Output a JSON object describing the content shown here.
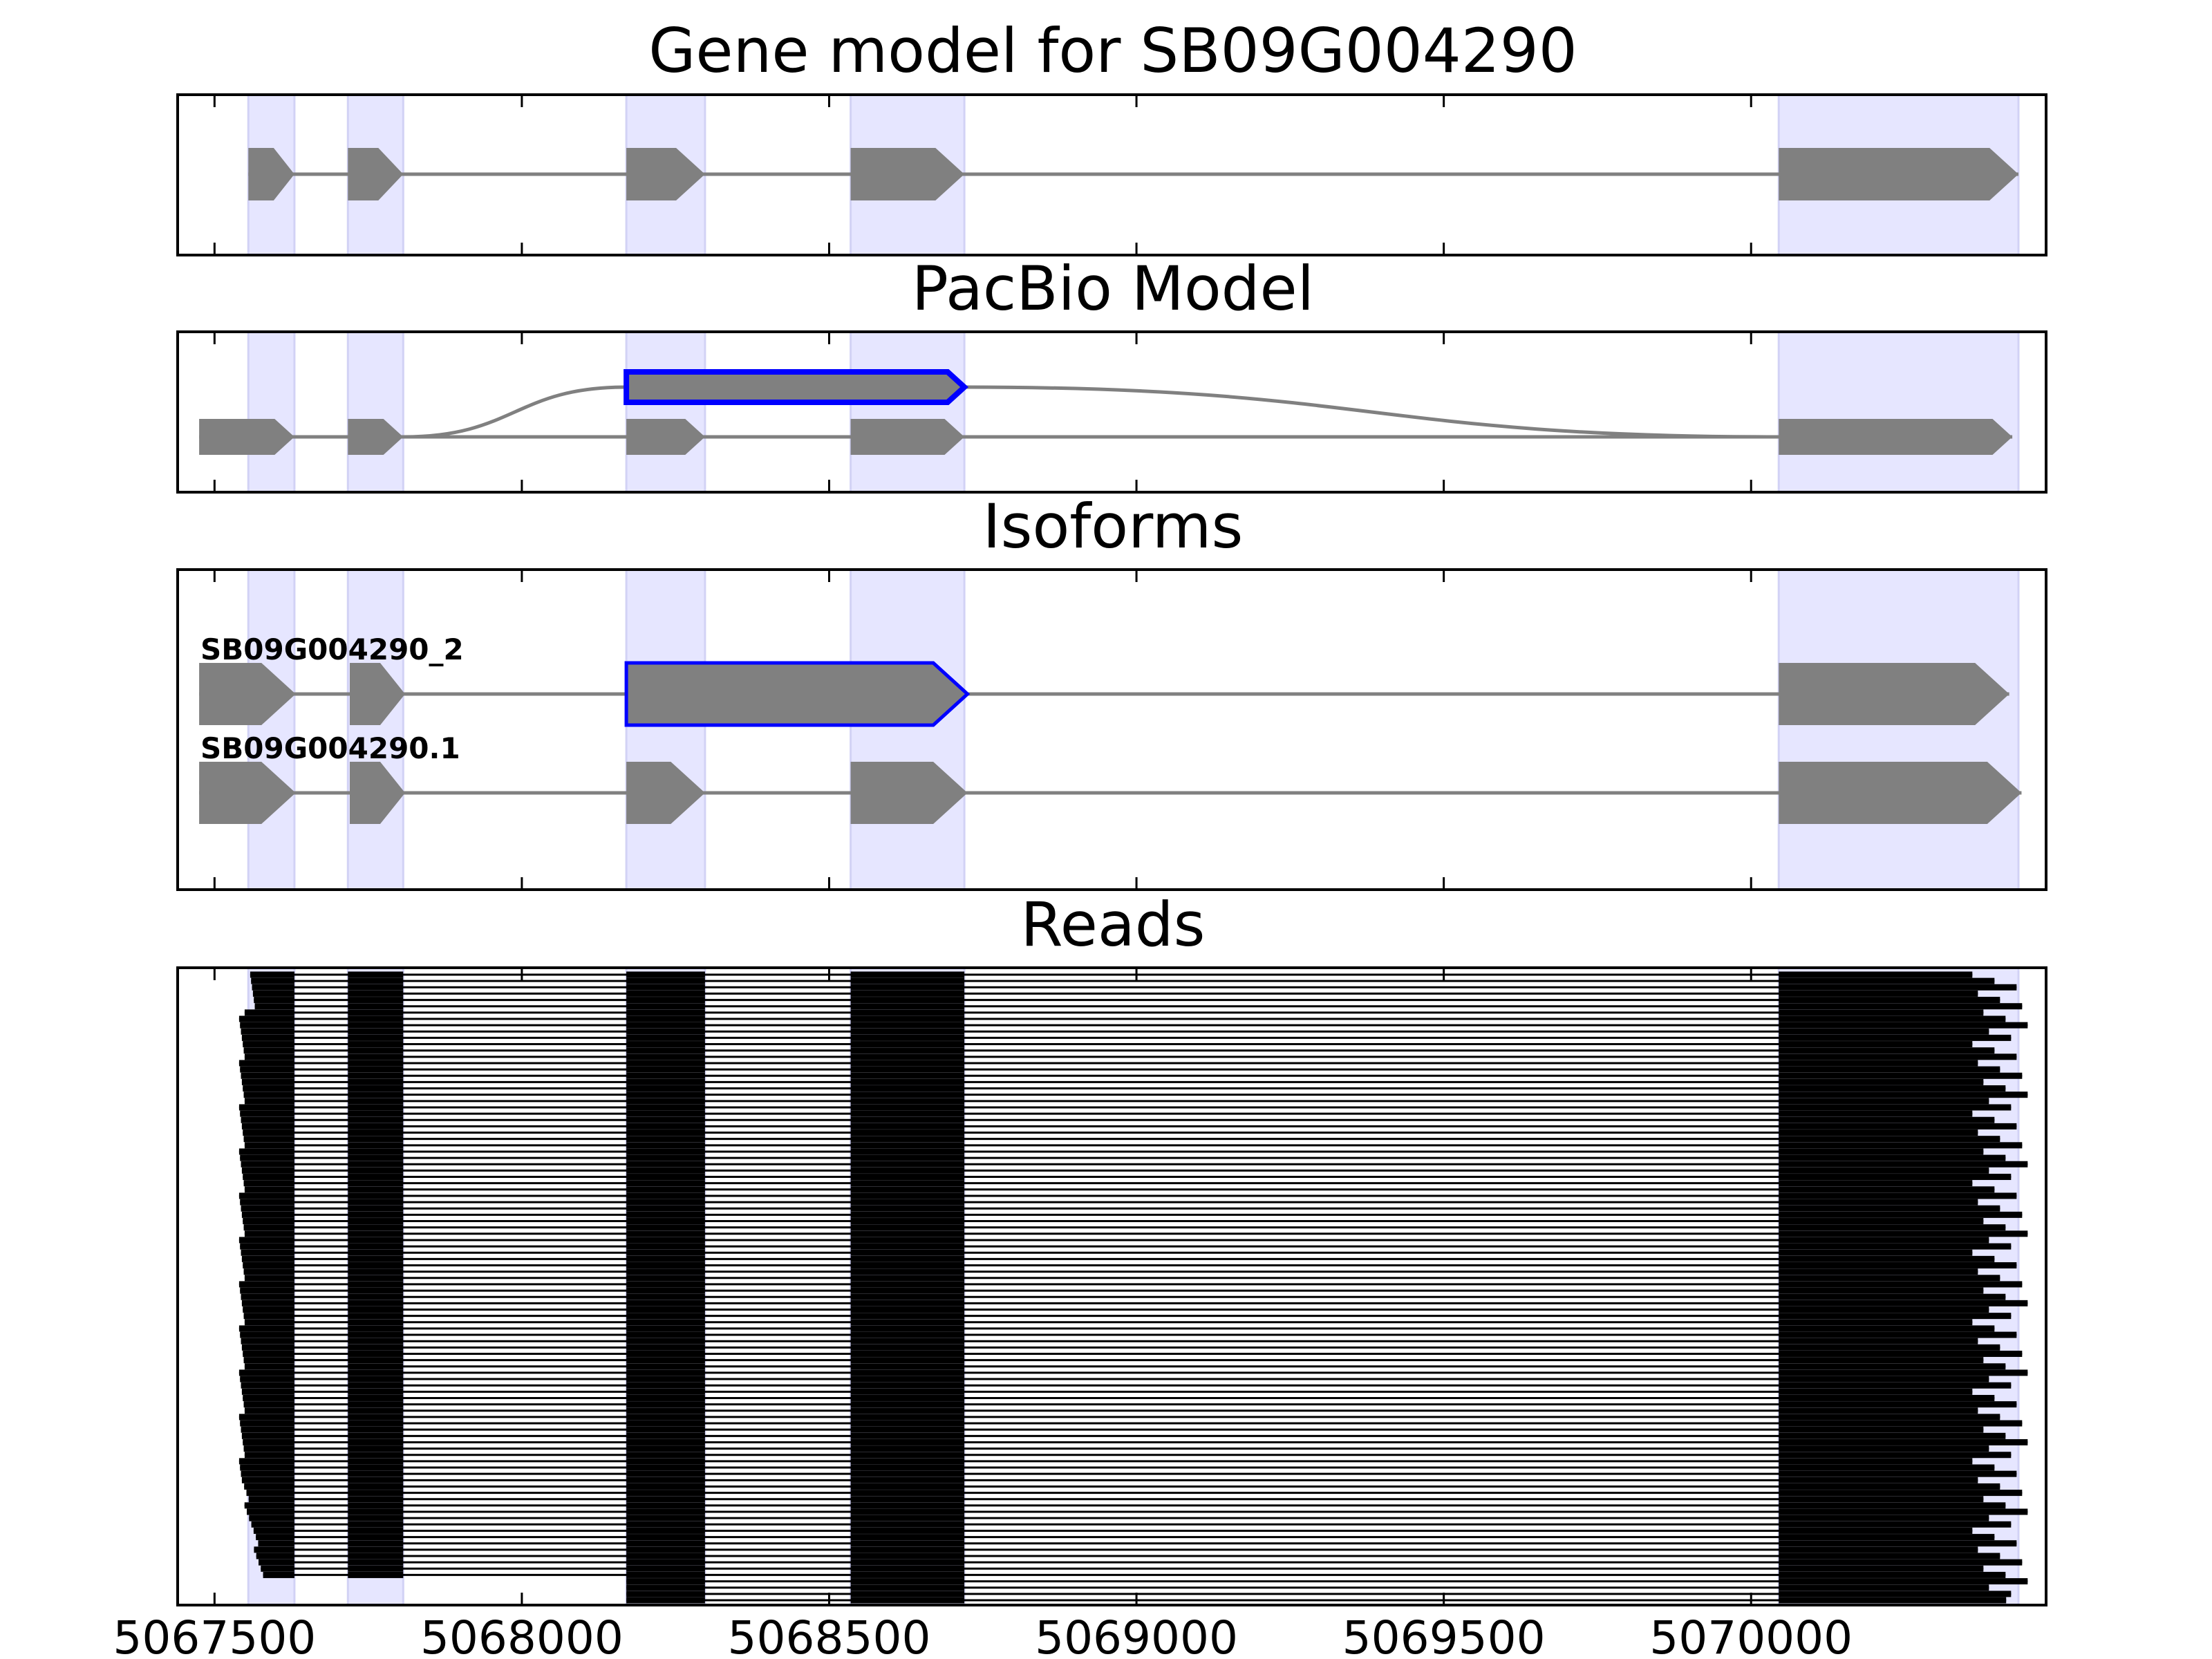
{
  "chart_data": {
    "type": "gene-structure",
    "xlim": [
      5067440,
      5070480
    ],
    "x_ticks": [
      5067500,
      5068000,
      5068500,
      5069000,
      5069500,
      5070000
    ],
    "x_tick_labels": [
      "5067500",
      "5068000",
      "5068500",
      "5069000",
      "5069500",
      "5070000"
    ],
    "colors": {
      "feature": "#808080",
      "highlight_band": "#e6e6ff",
      "selected_outline": "#0000ff",
      "read": "#000000",
      "frame": "#000000"
    },
    "exon_regions": [
      [
        5067555,
        5067630
      ],
      [
        5067717,
        5067807
      ],
      [
        5068170,
        5068298
      ],
      [
        5068535,
        5068720
      ],
      [
        5070045,
        5070435
      ]
    ],
    "gene_model": {
      "title": "Gene model for SB09G004290",
      "exons": [
        [
          5067555,
          5067630
        ],
        [
          5067717,
          5067807
        ],
        [
          5068170,
          5068298
        ],
        [
          5068535,
          5068720
        ],
        [
          5070045,
          5070435
        ]
      ]
    },
    "pacbio_model": {
      "title": "PacBio Model",
      "paths": [
        {
          "exons": [
            [
              5067475,
              5067630
            ],
            [
              5067717,
              5067807
            ],
            [
              5068170,
              5068298
            ],
            [
              5068535,
              5068720
            ],
            [
              5070045,
              5070425
            ]
          ]
        },
        {
          "exons": [
            [
              5068170,
              5068720
            ]
          ],
          "selected": true,
          "branch_from": 5067807,
          "rejoin_at": 5070045
        }
      ]
    },
    "isoforms": {
      "title": "Isoforms",
      "items": [
        {
          "name": "SB09G004290_2",
          "exons": [
            [
              5067475,
              5067632
            ],
            [
              5067720,
              5067810
            ],
            [
              5068170,
              5068725
            ],
            [
              5070045,
              5070420
            ]
          ],
          "selected": true
        },
        {
          "name": "SB09G004290.1",
          "exons": [
            [
              5067475,
              5067632
            ],
            [
              5067720,
              5067810
            ],
            [
              5068170,
              5068298
            ],
            [
              5068535,
              5068725
            ],
            [
              5070045,
              5070440
            ]
          ]
        }
      ]
    },
    "reads": {
      "title": "Reads",
      "count": 100
    }
  }
}
